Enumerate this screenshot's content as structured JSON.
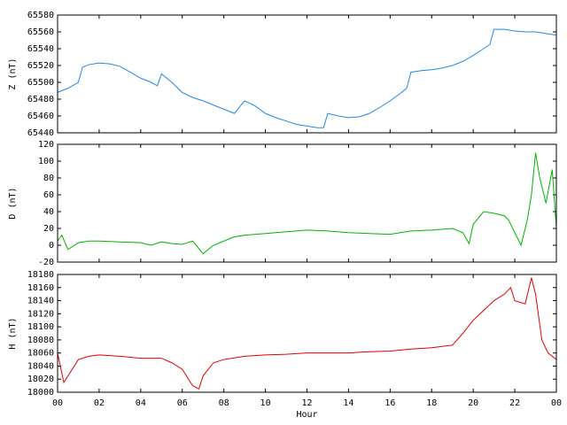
{
  "chart_data": [
    {
      "type": "line",
      "ylabel": "Z (nT)",
      "xlim": [
        0,
        24
      ],
      "ylim": [
        65440,
        65580
      ],
      "yticks": [
        65440,
        65460,
        65480,
        65500,
        65520,
        65540,
        65560,
        65580
      ],
      "series": [
        {
          "color": "#1f88e8",
          "x": [
            0,
            0.5,
            1,
            1.2,
            1.5,
            2,
            2.5,
            3,
            3.5,
            4,
            4.5,
            4.8,
            5,
            5.5,
            6,
            6.5,
            7,
            7.5,
            8,
            8.5,
            9,
            9.5,
            10,
            10.5,
            11,
            11.5,
            12,
            12.5,
            12.8,
            13,
            13.5,
            14,
            14.5,
            15,
            15.5,
            16,
            16.5,
            16.8,
            17,
            17.5,
            18,
            18.5,
            19,
            19.5,
            20,
            20.5,
            20.8,
            21,
            21.5,
            22,
            22.5,
            23,
            23.5,
            24
          ],
          "values": [
            65488,
            65493,
            65500,
            65518,
            65521,
            65523,
            65522,
            65519,
            65512,
            65505,
            65500,
            65496,
            65510,
            65500,
            65488,
            65482,
            65478,
            65473,
            65468,
            65463,
            65478,
            65472,
            65463,
            65458,
            65454,
            65450,
            65448,
            65446,
            65446,
            65463,
            65460,
            65458,
            65459,
            65463,
            65470,
            65478,
            65487,
            65493,
            65512,
            65514,
            65515,
            65517,
            65520,
            65525,
            65532,
            65540,
            65545,
            65563,
            65563,
            65561,
            65560,
            65560,
            65558,
            65556
          ]
        }
      ]
    },
    {
      "type": "line",
      "ylabel": "D (nT)",
      "xlim": [
        0,
        24
      ],
      "ylim": [
        -20,
        120
      ],
      "yticks": [
        -20,
        0,
        20,
        40,
        60,
        80,
        100,
        120
      ],
      "series": [
        {
          "color": "#00b400",
          "x": [
            0,
            0.2,
            0.5,
            1,
            1.5,
            2,
            3,
            4,
            4.5,
            5,
            5.5,
            6,
            6.5,
            7,
            7.5,
            8,
            8.5,
            9,
            10,
            11,
            12,
            13,
            14,
            15,
            16,
            17,
            18,
            19,
            19.5,
            19.8,
            20,
            20.5,
            21,
            21.5,
            21.7,
            22,
            22.3,
            22.6,
            22.8,
            23,
            23.2,
            23.5,
            23.8,
            24
          ],
          "values": [
            5,
            12,
            -5,
            3,
            5,
            5,
            4,
            3,
            0,
            4,
            2,
            1,
            5,
            -10,
            0,
            5,
            10,
            12,
            14,
            16,
            18,
            17,
            15,
            14,
            13,
            17,
            18,
            20,
            15,
            2,
            25,
            40,
            38,
            35,
            30,
            15,
            0,
            30,
            60,
            110,
            80,
            50,
            90,
            20
          ]
        }
      ]
    },
    {
      "type": "line",
      "ylabel": "H (nT)",
      "xlabel": "Hour",
      "xlim": [
        0,
        24
      ],
      "ylim": [
        18000,
        18180
      ],
      "yticks": [
        18000,
        18020,
        18040,
        18060,
        18080,
        18100,
        18120,
        18140,
        18160,
        18180
      ],
      "xticks": [
        {
          "value": 0,
          "label": "00"
        },
        {
          "value": 2,
          "label": "02"
        },
        {
          "value": 4,
          "label": "04"
        },
        {
          "value": 6,
          "label": "06"
        },
        {
          "value": 8,
          "label": "08"
        },
        10,
        12,
        14,
        16,
        18,
        20,
        22,
        {
          "value": 24,
          "label": "00"
        }
      ],
      "series": [
        {
          "color": "#e00000",
          "x": [
            0,
            0.3,
            0.6,
            1,
            1.5,
            2,
            3,
            4,
            5,
            5.5,
            6,
            6.5,
            6.8,
            7,
            7.5,
            8,
            9,
            10,
            11,
            12,
            13,
            14,
            15,
            16,
            17,
            18,
            19,
            19.5,
            20,
            20.5,
            21,
            21.5,
            21.8,
            22,
            22.5,
            22.8,
            23,
            23.3,
            23.6,
            24
          ],
          "values": [
            18060,
            18015,
            18030,
            18050,
            18055,
            18057,
            18055,
            18052,
            18052,
            18045,
            18035,
            18010,
            18005,
            18025,
            18045,
            18050,
            18055,
            18057,
            18058,
            18060,
            18060,
            18060,
            18062,
            18063,
            18066,
            18068,
            18072,
            18090,
            18110,
            18125,
            18140,
            18150,
            18160,
            18140,
            18135,
            18175,
            18150,
            18080,
            18060,
            18050
          ]
        }
      ]
    }
  ]
}
